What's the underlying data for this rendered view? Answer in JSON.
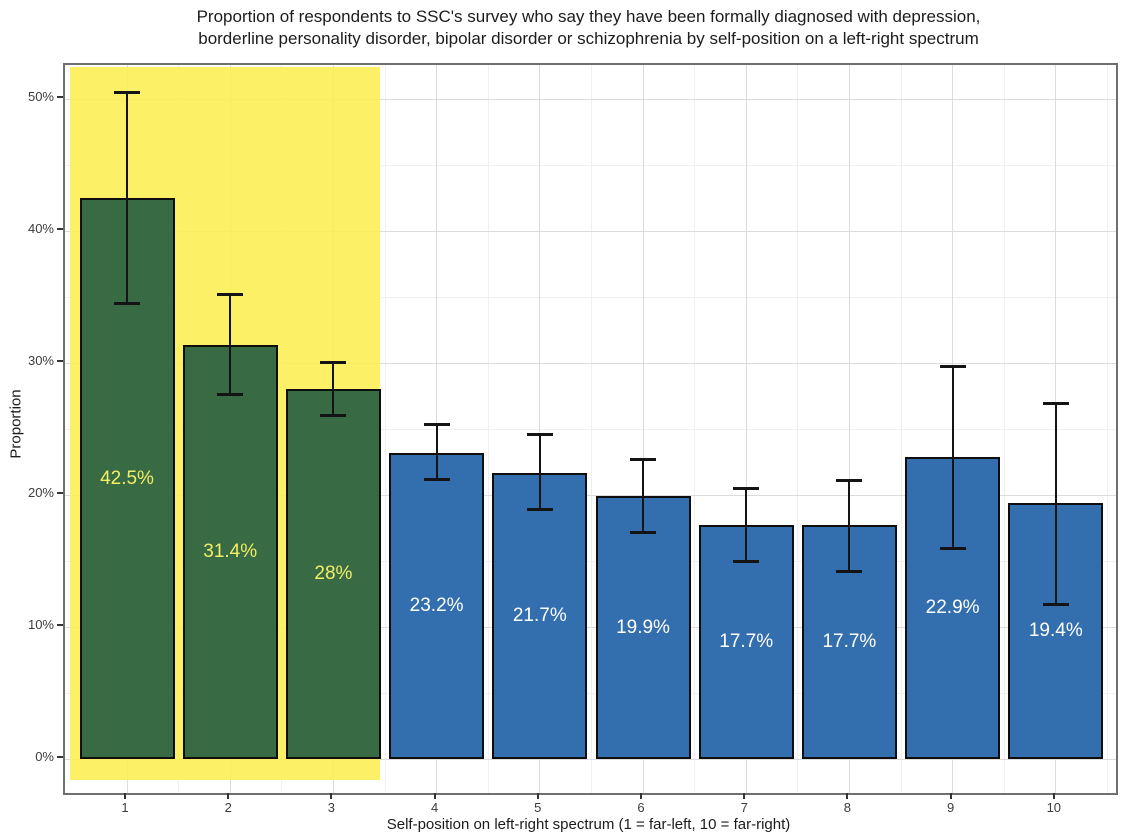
{
  "title": {
    "line1": "Proportion of respondents to SSC's survey who say they have been formally diagnosed with depression,",
    "line2": "borderline personality disorder, bipolar disorder or schizophrenia by self-position on a left-right spectrum"
  },
  "chart_data": {
    "type": "bar",
    "title": "Proportion of respondents to SSC's survey who say they have been formally diagnosed with depression, borderline personality disorder, bipolar disorder or schizophrenia by self-position on a left-right spectrum",
    "xlabel": "Self-position on left-right spectrum (1 = far-left, 10 = far-right)",
    "ylabel": "Proportion",
    "ylim": [
      -2.6,
      52.6
    ],
    "grid": "on",
    "legend": "none",
    "categories": [
      "1",
      "2",
      "3",
      "4",
      "5",
      "6",
      "7",
      "8",
      "9",
      "10"
    ],
    "y_ticks": [
      {
        "label": "0%",
        "value": 0
      },
      {
        "label": "10%",
        "value": 10
      },
      {
        "label": "20%",
        "value": 20
      },
      {
        "label": "30%",
        "value": 30
      },
      {
        "label": "40%",
        "value": 40
      },
      {
        "label": "50%",
        "value": 50
      }
    ],
    "bars": [
      {
        "category": "1",
        "value": 42.5,
        "label": "42.5%",
        "err_low": 34.5,
        "err_high": 50.5,
        "highlighted": true
      },
      {
        "category": "2",
        "value": 31.4,
        "label": "31.4%",
        "err_low": 27.6,
        "err_high": 35.2,
        "highlighted": true
      },
      {
        "category": "3",
        "value": 28.0,
        "label": "28%",
        "err_low": 26.0,
        "err_high": 30.1,
        "highlighted": true
      },
      {
        "category": "4",
        "value": 23.2,
        "label": "23.2%",
        "err_low": 21.1,
        "err_high": 25.4,
        "highlighted": false
      },
      {
        "category": "5",
        "value": 21.7,
        "label": "21.7%",
        "err_low": 18.9,
        "err_high": 24.6,
        "highlighted": false
      },
      {
        "category": "6",
        "value": 19.9,
        "label": "19.9%",
        "err_low": 17.1,
        "err_high": 22.7,
        "highlighted": false
      },
      {
        "category": "7",
        "value": 17.7,
        "label": "17.7%",
        "err_low": 14.9,
        "err_high": 20.5,
        "highlighted": false
      },
      {
        "category": "8",
        "value": 17.7,
        "label": "17.7%",
        "err_low": 14.2,
        "err_high": 21.1,
        "highlighted": false
      },
      {
        "category": "9",
        "value": 22.9,
        "label": "22.9%",
        "err_low": 15.9,
        "err_high": 29.8,
        "highlighted": false
      },
      {
        "category": "10",
        "value": 19.4,
        "label": "19.4%",
        "err_low": 11.7,
        "err_high": 27.0,
        "highlighted": false
      }
    ],
    "highlight_region": {
      "categories": [
        "1",
        "2",
        "3"
      ],
      "color": "#fcee52"
    },
    "colors": {
      "highlighted_bar": "#386a43",
      "default_bar": "#336fae",
      "highlight_band": "#fcee52",
      "highlighted_bar_label": "#f2ee65",
      "default_bar_label": "#ffffff",
      "bar_stroke": "#0e0e0e",
      "error_bar": "#141414",
      "grid_major": "#dcdcdc",
      "grid_minor": "#f0f0f0"
    }
  }
}
